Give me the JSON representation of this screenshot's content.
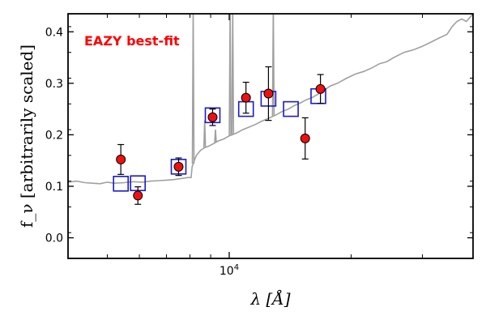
{
  "chart_data": {
    "type": "scatter",
    "annotation": "EAZY best-fit",
    "annotation_color": "#ff0000",
    "xlabel": "λ [Å]",
    "ylabel": "f_ν [arbitrarily scaled]",
    "xscale": "log",
    "xlim": [
      4000,
      40000
    ],
    "ylim": [
      -0.04,
      0.435
    ],
    "x_ticks": [
      {
        "value": 10000,
        "label": "10^4"
      }
    ],
    "y_ticks": [
      {
        "value": 0.0,
        "label": "0.0"
      },
      {
        "value": 0.1,
        "label": "0.1"
      },
      {
        "value": 0.2,
        "label": "0.2"
      },
      {
        "value": 0.3,
        "label": "0.3"
      },
      {
        "value": 0.4,
        "label": "0.4"
      }
    ],
    "colors": {
      "model": "#a0a0a0",
      "observed_fill": "#ee1111",
      "model_flux_box": "#1a1acc",
      "errorbar": "#000000"
    },
    "series": [
      {
        "kind": "observed",
        "points": [
          {
            "x": 5400,
            "y": 0.152,
            "yerr": 0.029
          },
          {
            "x": 5950,
            "y": 0.082,
            "yerr": 0.017
          },
          {
            "x": 7500,
            "y": 0.138,
            "yerr": 0.017
          },
          {
            "x": 9100,
            "y": 0.234,
            "yerr": 0.016
          },
          {
            "x": 11000,
            "y": 0.272,
            "yerr": 0.03
          },
          {
            "x": 12500,
            "y": 0.28,
            "yerr": 0.052
          },
          {
            "x": 15400,
            "y": 0.193,
            "yerr": 0.04
          },
          {
            "x": 16800,
            "y": 0.289,
            "yerr": 0.028
          }
        ]
      },
      {
        "kind": "model_flux",
        "points": [
          {
            "x": 5400,
            "y": 0.105
          },
          {
            "x": 5950,
            "y": 0.106
          },
          {
            "x": 7500,
            "y": 0.138
          },
          {
            "x": 9100,
            "y": 0.238
          },
          {
            "x": 11000,
            "y": 0.25
          },
          {
            "x": 12500,
            "y": 0.27
          },
          {
            "x": 14200,
            "y": 0.25
          },
          {
            "x": 16600,
            "y": 0.275
          }
        ]
      },
      {
        "kind": "model_sed",
        "continuum": [
          [
            4000,
            0.108
          ],
          [
            4200,
            0.11
          ],
          [
            4400,
            0.107
          ],
          [
            4600,
            0.106
          ],
          [
            4800,
            0.105
          ],
          [
            5000,
            0.108
          ],
          [
            5200,
            0.106
          ],
          [
            5500,
            0.107
          ],
          [
            5800,
            0.109
          ],
          [
            6100,
            0.108
          ],
          [
            6400,
            0.11
          ],
          [
            6700,
            0.111
          ],
          [
            7000,
            0.112
          ],
          [
            7300,
            0.113
          ],
          [
            7600,
            0.115
          ],
          [
            7900,
            0.117
          ],
          [
            8050,
            0.117
          ],
          [
            8100,
            0.138
          ],
          [
            8200,
            0.15
          ],
          [
            8300,
            0.16
          ],
          [
            8500,
            0.17
          ],
          [
            8700,
            0.175
          ],
          [
            8900,
            0.178
          ],
          [
            9100,
            0.182
          ],
          [
            9400,
            0.188
          ],
          [
            9700,
            0.192
          ],
          [
            10000,
            0.198
          ],
          [
            10400,
            0.203
          ],
          [
            10800,
            0.21
          ],
          [
            11200,
            0.215
          ],
          [
            11600,
            0.22
          ],
          [
            12000,
            0.226
          ],
          [
            12500,
            0.232
          ],
          [
            13000,
            0.238
          ],
          [
            13500,
            0.245
          ],
          [
            14000,
            0.25
          ],
          [
            14500,
            0.257
          ],
          [
            15000,
            0.262
          ],
          [
            15500,
            0.268
          ],
          [
            16000,
            0.272
          ],
          [
            16500,
            0.278
          ],
          [
            17000,
            0.285
          ],
          [
            17800,
            0.295
          ],
          [
            18500,
            0.3
          ],
          [
            19500,
            0.31
          ],
          [
            20500,
            0.318
          ],
          [
            21500,
            0.323
          ],
          [
            22500,
            0.33
          ],
          [
            23500,
            0.338
          ],
          [
            24500,
            0.342
          ],
          [
            25500,
            0.35
          ],
          [
            27000,
            0.36
          ],
          [
            28500,
            0.365
          ],
          [
            30000,
            0.372
          ],
          [
            31500,
            0.38
          ],
          [
            33000,
            0.388
          ],
          [
            34500,
            0.395
          ],
          [
            35500,
            0.41
          ],
          [
            36500,
            0.42
          ],
          [
            37500,
            0.425
          ],
          [
            38500,
            0.42
          ],
          [
            39500,
            0.43
          ],
          [
            40000,
            0.435
          ]
        ],
        "emission_lines": [
          {
            "x": 8150,
            "peak": 0.45
          },
          {
            "x": 8700,
            "peak": 0.228
          },
          {
            "x": 9250,
            "peak": 0.21
          },
          {
            "x": 10050,
            "peak": 0.45
          },
          {
            "x": 10200,
            "peak": 0.45
          },
          {
            "x": 12850,
            "peak": 0.45
          }
        ]
      }
    ]
  }
}
